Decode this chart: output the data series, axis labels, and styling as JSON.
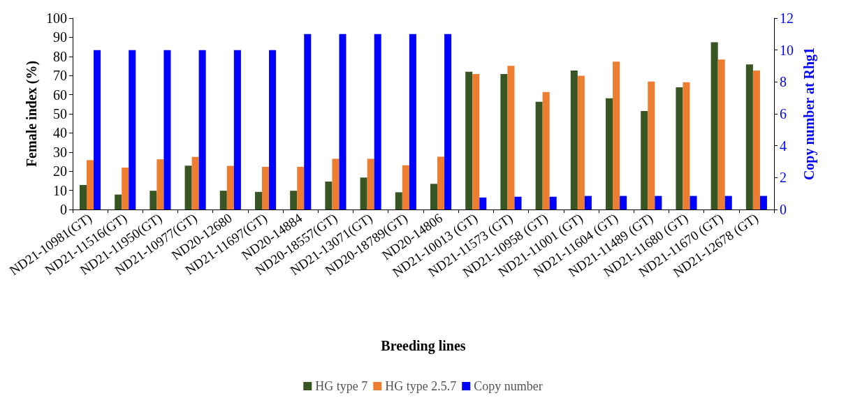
{
  "chart_data": {
    "type": "bar",
    "xlabel": "Breeding lines",
    "ylabel": "Female index (%)",
    "y2label": "Copy number at Rhg1",
    "categories": [
      "ND21-10981(GT)",
      "ND21-11516(GT)",
      "ND21-11950(GT)",
      "ND21-10977(GT)",
      "ND20-12680",
      "ND21-11697(GT)",
      "ND20-14884",
      "ND20-18557(GT)",
      "ND21-13071(GT)",
      "ND20-18789(GT)",
      "ND20-14806",
      "ND21-10013 (GT)",
      "ND21-11573 (GT)",
      "ND21-10958 (GT)",
      "ND21-11001 (GT)",
      "ND21-11604 (GT)",
      "ND21-11489 (GT)",
      "ND21-11680 (GT)",
      "ND21-11670 (GT)",
      "ND21-12678 (GT)"
    ],
    "series": [
      {
        "name": "HG type 7",
        "color": "#375623",
        "values": [
          12.8,
          7.8,
          9.8,
          22.9,
          9.8,
          9.2,
          9.8,
          14.6,
          16.7,
          9.0,
          13.4,
          72,
          70.8,
          56.3,
          72.6,
          58.1,
          51.5,
          63.9,
          87.4,
          75.8
        ]
      },
      {
        "name": "HG type 2.5.7",
        "color": "#ed7d31",
        "values": [
          25.8,
          21.9,
          26.2,
          27.5,
          22.8,
          22.3,
          22.3,
          26.5,
          26.5,
          23.1,
          27.6,
          70.8,
          75.1,
          61.4,
          69.9,
          77.3,
          66.9,
          66.5,
          78.4,
          72.6
        ]
      },
      {
        "name": "Copy number",
        "color": "#0000ff",
        "axis": "y2",
        "values": [
          10,
          10,
          10,
          10,
          10,
          10,
          11,
          11,
          11,
          11,
          11,
          0.75,
          0.8,
          0.8,
          0.85,
          0.85,
          0.85,
          0.85,
          0.85,
          0.85
        ]
      }
    ],
    "ylim": [
      0,
      100
    ],
    "yticks": [
      0,
      10,
      20,
      30,
      40,
      50,
      60,
      70,
      80,
      90,
      100
    ],
    "y2lim": [
      0,
      12
    ],
    "y2ticks": [
      0,
      2,
      4,
      6,
      8,
      10,
      12
    ],
    "grid": false,
    "legend": "bottom"
  }
}
